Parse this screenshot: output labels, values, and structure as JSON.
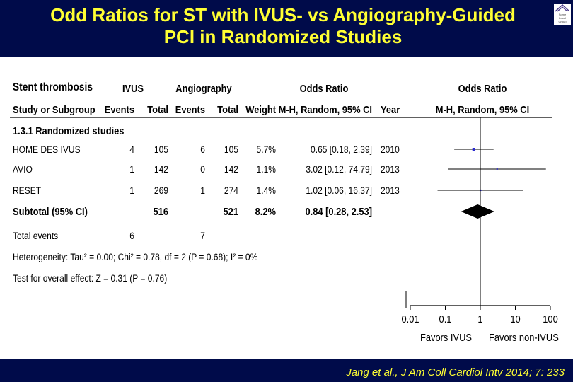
{
  "title_line1": "Odd Ratios for ST with IVUS- vs  Angiography-Guided",
  "title_line2": "PCI in Randomized Studies",
  "citation": "Jang et al., J Am Coll Cardiol Intv 2014; 7: 233",
  "logo_text": [
    "Some",
    "Local",
    "Group"
  ],
  "chart_data": {
    "type": "forest",
    "outcome": "Stent thrombosis",
    "group1_label": "IVUS",
    "group2_label": "Angiography",
    "col_or_title": "Odds Ratio",
    "plot_title": "Odds Ratio",
    "columns": [
      "Study or Subgroup",
      "Events",
      "Total",
      "Events",
      "Total",
      "Weight",
      "M-H, Random, 95% CI",
      "Year"
    ],
    "plot_method": "M-H, Random, 95% CI",
    "subgroup_label": "1.3.1 Randomized studies",
    "studies": [
      {
        "name": "HOME DES IVUS",
        "e1": "4",
        "t1": "105",
        "e2": "6",
        "t2": "105",
        "weight": "5.7%",
        "ci_text": "0.65 [0.18, 2.39]",
        "year": "2010",
        "or": 0.65,
        "lo": 0.18,
        "hi": 2.39
      },
      {
        "name": "AVIO",
        "e1": "1",
        "t1": "142",
        "e2": "0",
        "t2": "142",
        "weight": "1.1%",
        "ci_text": "3.02 [0.12, 74.79]",
        "year": "2013",
        "or": 3.02,
        "lo": 0.12,
        "hi": 74.79
      },
      {
        "name": "RESET",
        "e1": "1",
        "t1": "269",
        "e2": "1",
        "t2": "274",
        "weight": "1.4%",
        "ci_text": "1.02 [0.06, 16.37]",
        "year": "2013",
        "or": 1.02,
        "lo": 0.06,
        "hi": 16.37
      }
    ],
    "subtotal": {
      "name": "Subtotal (95% CI)",
      "t1": "516",
      "t2": "521",
      "weight": "8.2%",
      "ci_text": "0.84 [0.28, 2.53]",
      "or": 0.84,
      "lo": 0.28,
      "hi": 2.53
    },
    "total_events": {
      "label": "Total events",
      "e1": "6",
      "e2": "7"
    },
    "heterogeneity": "Heterogeneity: Tau² = 0.00; Chi² = 0.78, df = 2 (P = 0.68); I² = 0%",
    "overall_effect": "Test for overall effect: Z = 0.31 (P = 0.76)",
    "x_scale": "log",
    "xlim": [
      0.01,
      100
    ],
    "ticks": [
      0.01,
      0.1,
      1,
      10,
      100
    ],
    "tick_labels": [
      "0.01",
      "0.1",
      "1",
      "10",
      "100"
    ],
    "favors_left": "Favors IVUS",
    "favors_right": "Favors non-IVUS"
  }
}
